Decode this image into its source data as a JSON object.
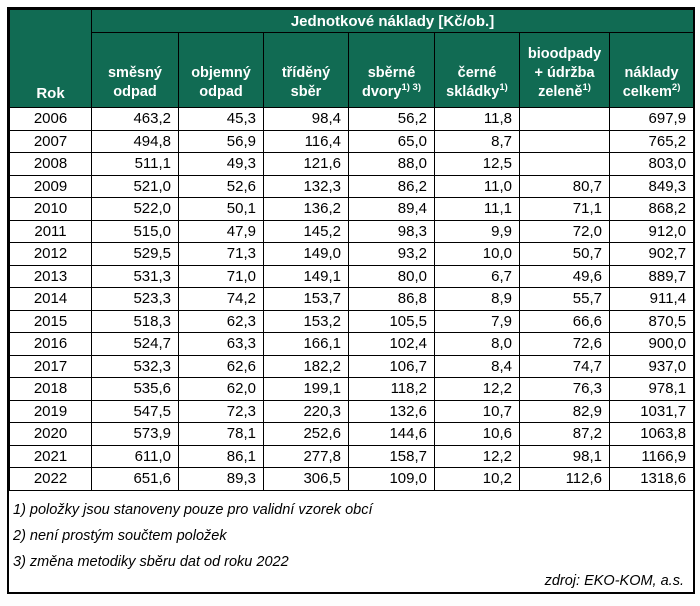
{
  "title": "Jednotkové náklady [Kč/ob.]",
  "colors": {
    "header_bg": "#116B53",
    "header_text": "#FFFFFF",
    "grid": "#000000"
  },
  "table": {
    "year_header": "Rok",
    "columns": [
      {
        "label": "směsný odpad",
        "sup": ""
      },
      {
        "label": "objemný odpad",
        "sup": ""
      },
      {
        "label": "tříděný sběr",
        "sup": ""
      },
      {
        "label": "sběrné dvory",
        "sup": "1) 3)"
      },
      {
        "label": "černé skládky",
        "sup": "1)"
      },
      {
        "label": "bioodpady + údržba zeleně",
        "sup": "1)"
      },
      {
        "label": "náklady celkem",
        "sup": "2)"
      }
    ]
  },
  "chart_data": {
    "type": "table",
    "title": "Jednotkové náklady [Kč/ob.]",
    "categories": [
      "2006",
      "2007",
      "2008",
      "2009",
      "2010",
      "2011",
      "2012",
      "2013",
      "2014",
      "2015",
      "2016",
      "2017",
      "2018",
      "2019",
      "2020",
      "2021",
      "2022"
    ],
    "x_header": "Rok",
    "series": [
      {
        "name": "směsný odpad",
        "values": [
          463.2,
          494.8,
          511.1,
          521.0,
          522.0,
          515.0,
          529.5,
          531.3,
          523.3,
          518.3,
          524.7,
          532.3,
          535.6,
          547.5,
          573.9,
          611.0,
          651.6
        ]
      },
      {
        "name": "objemný odpad",
        "values": [
          45.3,
          56.9,
          49.3,
          52.6,
          50.1,
          47.9,
          71.3,
          71.0,
          74.2,
          62.3,
          63.3,
          62.6,
          62.0,
          72.3,
          78.1,
          86.1,
          89.3
        ]
      },
      {
        "name": "tříděný sběr",
        "values": [
          98.4,
          116.4,
          121.6,
          132.3,
          136.2,
          145.2,
          149.0,
          149.1,
          153.7,
          153.2,
          166.1,
          182.2,
          199.1,
          220.3,
          252.6,
          277.8,
          306.5
        ]
      },
      {
        "name": "sběrné dvory 1) 3)",
        "values": [
          56.2,
          65.0,
          88.0,
          86.2,
          89.4,
          98.3,
          93.2,
          80.0,
          86.8,
          105.5,
          102.4,
          106.7,
          118.2,
          132.6,
          144.6,
          158.7,
          109.0
        ]
      },
      {
        "name": "černé skládky 1)",
        "values": [
          11.8,
          8.7,
          12.5,
          11.0,
          11.1,
          9.9,
          10.0,
          6.7,
          8.9,
          7.9,
          8.0,
          8.4,
          12.2,
          10.7,
          10.6,
          12.2,
          10.2
        ]
      },
      {
        "name": "bioodpady + údržba zeleně 1)",
        "values": [
          null,
          null,
          null,
          80.7,
          71.1,
          72.0,
          50.7,
          49.6,
          55.7,
          66.6,
          72.6,
          74.7,
          76.3,
          82.9,
          87.2,
          98.1,
          112.6
        ]
      },
      {
        "name": "náklady celkem 2)",
        "values": [
          697.9,
          765.2,
          803.0,
          849.3,
          868.2,
          912.0,
          902.7,
          889.7,
          911.4,
          870.5,
          900.0,
          937.0,
          978.1,
          1031.7,
          1063.8,
          1166.9,
          1318.6
        ]
      }
    ],
    "number_format": "decimal-comma, 1 decimal place",
    "notes": "empty cells for bioodpady + údržba zeleně in 2006–2008"
  },
  "footnotes": [
    "1) položky jsou stanoveny pouze pro validní vzorek obcí",
    "2) není prostým součtem položek",
    "3) změna metodiky sběru dat od roku 2022"
  ],
  "source": "zdroj: EKO-KOM, a.s."
}
